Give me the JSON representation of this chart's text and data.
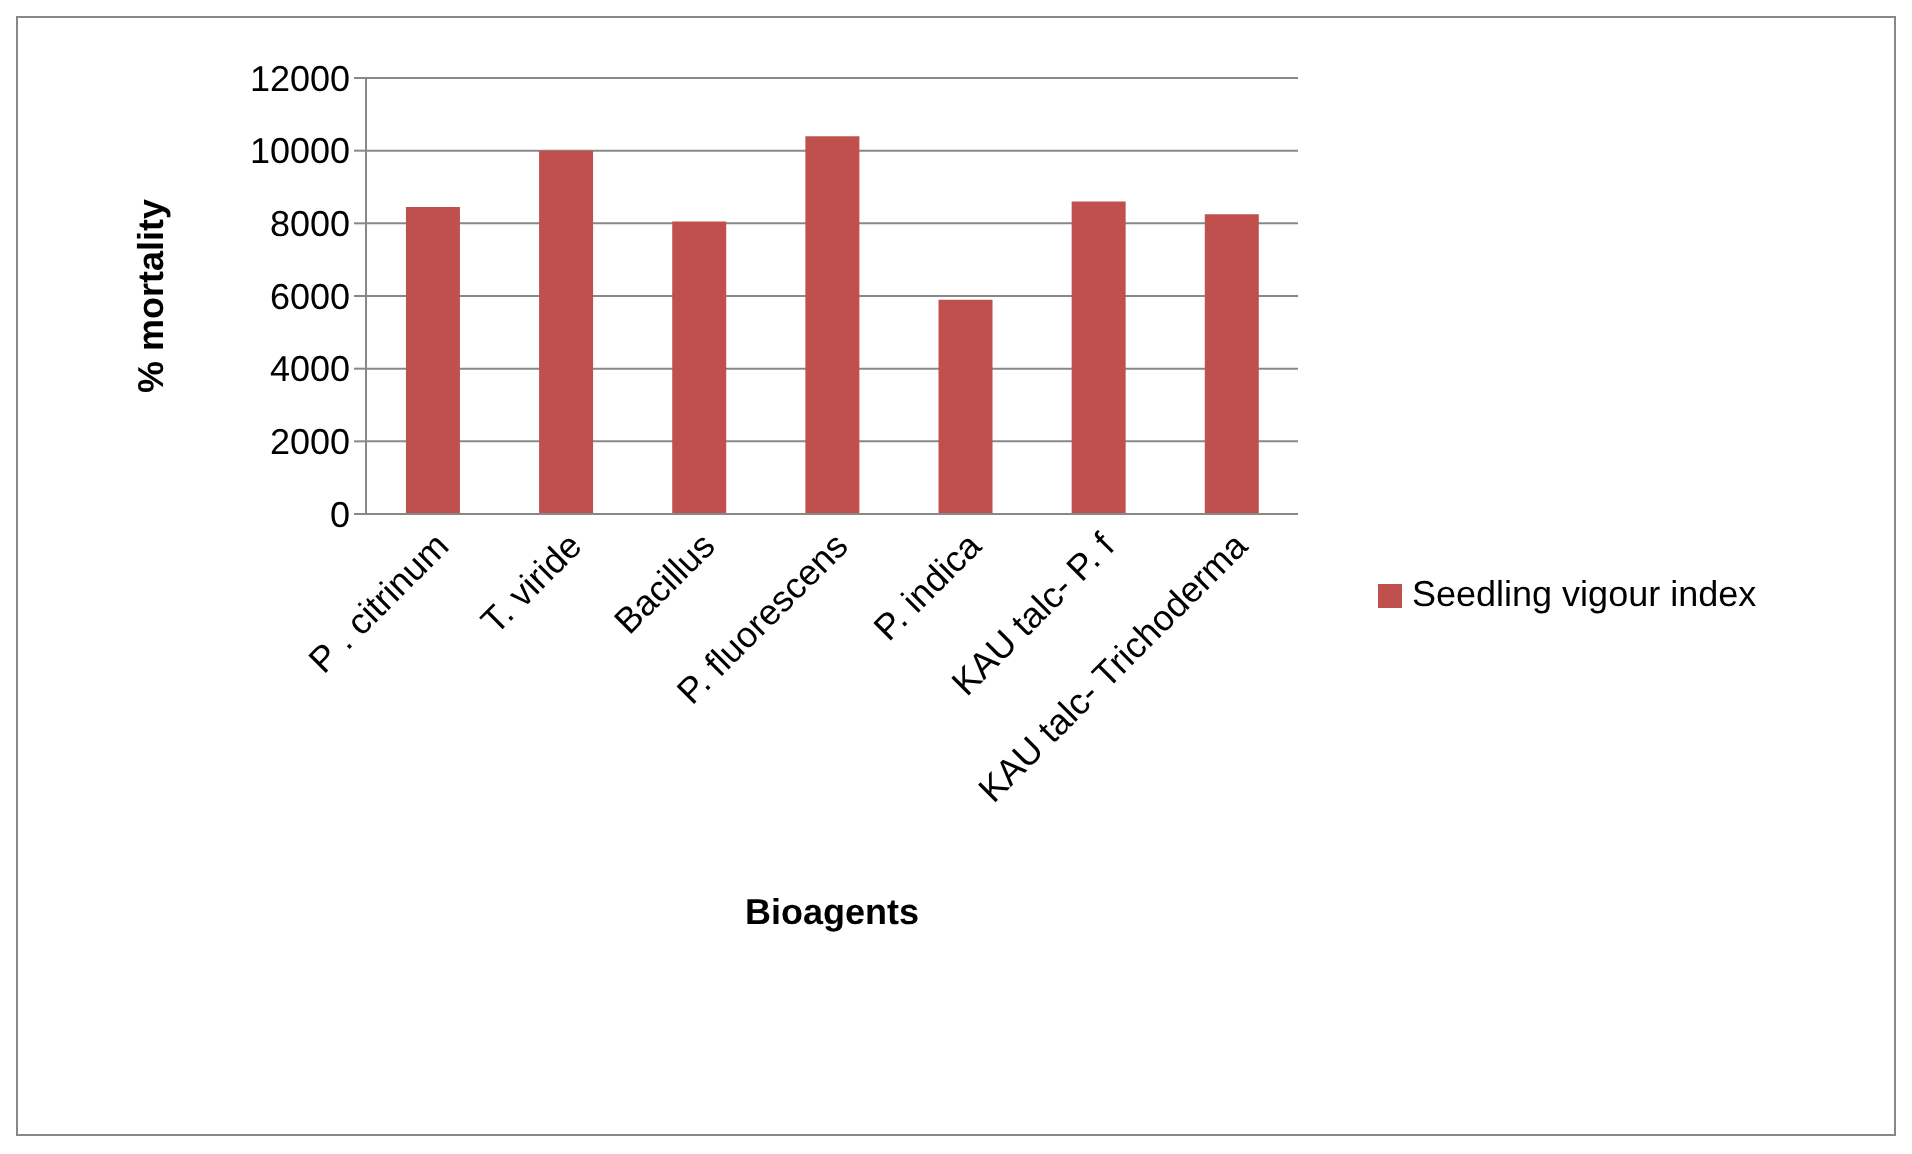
{
  "chart_data": {
    "type": "bar",
    "xlabel": "Bioagents",
    "ylabel": "% mortality",
    "categories": [
      "P . citrinum",
      "T. viride",
      "Bacillus",
      "P. fluorescens",
      "P. indica",
      "KAU talc- P. f",
      "KAU talc- Trichoderma"
    ],
    "series": [
      {
        "name": "Seedling vigour index",
        "color": "#c0504d",
        "values": [
          8450,
          10000,
          8050,
          10400,
          5900,
          8600,
          8250
        ]
      }
    ],
    "ylim": [
      0,
      12000
    ],
    "yticks": [
      0,
      2000,
      4000,
      6000,
      8000,
      10000,
      12000
    ],
    "grid": "y",
    "legend": "right"
  }
}
